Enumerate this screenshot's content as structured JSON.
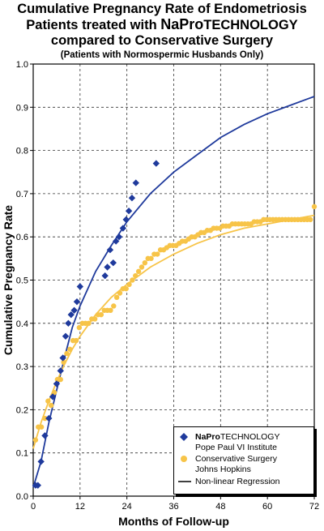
{
  "title": {
    "line1": "Cumulative Pregnancy Rate of Endometriosis",
    "line2_prefix": "Patients treated with ",
    "line2_brand_bold": "NaPro",
    "line2_brand_rest": "TECHNOLOGY",
    "line3": "compared to Conservative Surgery",
    "subtitle": "(Patients with Normospermic Husbands Only)"
  },
  "legend": {
    "napro_brand_bold": "NaPro",
    "napro_brand_rest": "TECHNOLOGY",
    "napro_sub": "Pope Paul VI Institute",
    "cons_line1": "Conservative Surgery",
    "cons_line2": "Johns Hopkins",
    "regression": "Non-linear Regression"
  },
  "colors": {
    "napro": "#1f3a9c",
    "conservative": "#f7c448",
    "grid": "#333333"
  },
  "chart_data": {
    "type": "scatter",
    "xlabel": "Months of Follow-up",
    "ylabel": "Cumulative Pregnancy Rate",
    "xlim": [
      0,
      72
    ],
    "ylim": [
      0,
      1.0
    ],
    "xticks": [
      0,
      12,
      24,
      36,
      48,
      60,
      72
    ],
    "yticks": [
      0.0,
      0.1,
      0.2,
      0.3,
      0.4,
      0.5,
      0.6,
      0.7,
      0.8,
      0.9,
      1.0
    ],
    "grid": true,
    "legend_position": "bottom-right",
    "series": [
      {
        "name": "NaProTECHNOLOGY Pope Paul VI Institute",
        "marker": "diamond",
        "color": "#1f3a9c",
        "points": [
          [
            0.6,
            0.025
          ],
          [
            1.2,
            0.025
          ],
          [
            2,
            0.08
          ],
          [
            3,
            0.14
          ],
          [
            4,
            0.18
          ],
          [
            5,
            0.23
          ],
          [
            6,
            0.26
          ],
          [
            7,
            0.29
          ],
          [
            7.6,
            0.32
          ],
          [
            8.3,
            0.37
          ],
          [
            9,
            0.4
          ],
          [
            9.7,
            0.42
          ],
          [
            10.5,
            0.43
          ],
          [
            11.2,
            0.45
          ],
          [
            12,
            0.485
          ],
          [
            18.4,
            0.51
          ],
          [
            19,
            0.53
          ],
          [
            19.7,
            0.57
          ],
          [
            20.5,
            0.54
          ],
          [
            21.2,
            0.59
          ],
          [
            22,
            0.6
          ],
          [
            23,
            0.62
          ],
          [
            23.8,
            0.64
          ],
          [
            24.5,
            0.66
          ],
          [
            25.3,
            0.69
          ],
          [
            26.3,
            0.725
          ],
          [
            31.5,
            0.77
          ]
        ],
        "fit": [
          [
            0,
            0.02
          ],
          [
            2,
            0.08
          ],
          [
            4,
            0.17
          ],
          [
            6,
            0.245
          ],
          [
            8,
            0.32
          ],
          [
            10,
            0.39
          ],
          [
            12,
            0.44
          ],
          [
            16,
            0.52
          ],
          [
            20,
            0.58
          ],
          [
            24,
            0.635
          ],
          [
            30,
            0.7
          ],
          [
            36,
            0.75
          ],
          [
            42,
            0.79
          ],
          [
            48,
            0.83
          ],
          [
            54,
            0.86
          ],
          [
            60,
            0.885
          ],
          [
            66,
            0.905
          ],
          [
            72,
            0.925
          ]
        ]
      },
      {
        "name": "Conservative Surgery Johns Hopkins",
        "marker": "circle",
        "color": "#f7c448",
        "points": [
          [
            0.6,
            0.13
          ],
          [
            1.3,
            0.16
          ],
          [
            2.1,
            0.16
          ],
          [
            3,
            0.18
          ],
          [
            3.8,
            0.22
          ],
          [
            4.6,
            0.21
          ],
          [
            5.4,
            0.24
          ],
          [
            6.2,
            0.27
          ],
          [
            7,
            0.27
          ],
          [
            7.8,
            0.31
          ],
          [
            8.6,
            0.33
          ],
          [
            9.4,
            0.34
          ],
          [
            10.2,
            0.36
          ],
          [
            11,
            0.36
          ],
          [
            11.8,
            0.39
          ],
          [
            12.6,
            0.4
          ],
          [
            13.4,
            0.4
          ],
          [
            14.2,
            0.4
          ],
          [
            15,
            0.41
          ],
          [
            15.8,
            0.41
          ],
          [
            16.6,
            0.42
          ],
          [
            17.4,
            0.42
          ],
          [
            18.2,
            0.43
          ],
          [
            19,
            0.43
          ],
          [
            19.8,
            0.43
          ],
          [
            20.6,
            0.44
          ],
          [
            21.4,
            0.46
          ],
          [
            22.2,
            0.47
          ],
          [
            23,
            0.48
          ],
          [
            23.8,
            0.48
          ],
          [
            24.6,
            0.49
          ],
          [
            25.4,
            0.5
          ],
          [
            26.2,
            0.51
          ],
          [
            27,
            0.52
          ],
          [
            27.8,
            0.53
          ],
          [
            28.6,
            0.54
          ],
          [
            29.4,
            0.55
          ],
          [
            30.2,
            0.55
          ],
          [
            31,
            0.56
          ],
          [
            31.8,
            0.56
          ],
          [
            32.6,
            0.57
          ],
          [
            33.4,
            0.57
          ],
          [
            34.2,
            0.575
          ],
          [
            35,
            0.58
          ],
          [
            35.8,
            0.58
          ],
          [
            36.6,
            0.58
          ],
          [
            37.4,
            0.585
          ],
          [
            38.2,
            0.59
          ],
          [
            39,
            0.59
          ],
          [
            39.8,
            0.595
          ],
          [
            40.6,
            0.6
          ],
          [
            41.4,
            0.6
          ],
          [
            42.2,
            0.605
          ],
          [
            43,
            0.61
          ],
          [
            43.8,
            0.61
          ],
          [
            44.6,
            0.615
          ],
          [
            45.4,
            0.615
          ],
          [
            46.2,
            0.62
          ],
          [
            47,
            0.62
          ],
          [
            47.8,
            0.62
          ],
          [
            48.6,
            0.625
          ],
          [
            49.4,
            0.625
          ],
          [
            50.2,
            0.625
          ],
          [
            51,
            0.63
          ],
          [
            51.8,
            0.63
          ],
          [
            52.6,
            0.63
          ],
          [
            53.4,
            0.63
          ],
          [
            54.2,
            0.63
          ],
          [
            55,
            0.63
          ],
          [
            55.8,
            0.63
          ],
          [
            56.6,
            0.635
          ],
          [
            57.4,
            0.635
          ],
          [
            58.2,
            0.635
          ],
          [
            59,
            0.64
          ],
          [
            59.8,
            0.64
          ],
          [
            60.6,
            0.64
          ],
          [
            61.4,
            0.64
          ],
          [
            62.2,
            0.64
          ],
          [
            63,
            0.64
          ],
          [
            63.8,
            0.64
          ],
          [
            64.6,
            0.64
          ],
          [
            65.4,
            0.64
          ],
          [
            66.2,
            0.64
          ],
          [
            67,
            0.64
          ],
          [
            67.8,
            0.64
          ],
          [
            68.6,
            0.64
          ],
          [
            69.4,
            0.64
          ],
          [
            70.2,
            0.64
          ],
          [
            71,
            0.64
          ],
          [
            72,
            0.67
          ]
        ],
        "fit": [
          [
            0,
            0.11
          ],
          [
            2,
            0.17
          ],
          [
            4,
            0.22
          ],
          [
            6,
            0.265
          ],
          [
            8,
            0.305
          ],
          [
            10,
            0.34
          ],
          [
            12,
            0.37
          ],
          [
            16,
            0.42
          ],
          [
            20,
            0.46
          ],
          [
            24,
            0.49
          ],
          [
            30,
            0.53
          ],
          [
            36,
            0.56
          ],
          [
            42,
            0.585
          ],
          [
            48,
            0.605
          ],
          [
            54,
            0.62
          ],
          [
            60,
            0.63
          ],
          [
            66,
            0.64
          ],
          [
            72,
            0.65
          ]
        ]
      }
    ],
    "regression_label": "Non-linear Regression"
  }
}
